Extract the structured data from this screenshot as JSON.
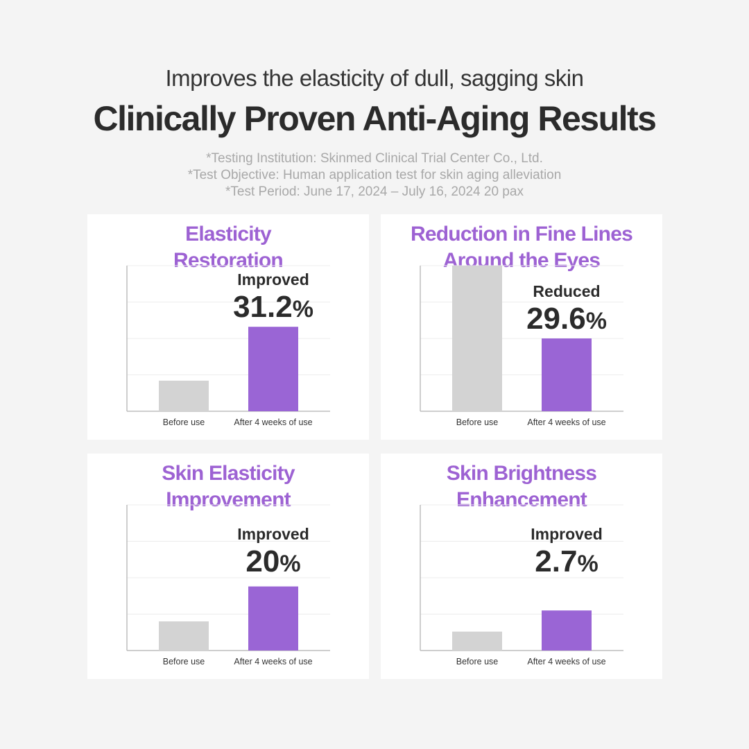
{
  "header": {
    "subtitle": "Improves the elasticity of dull, sagging skin",
    "title": "Clinically Proven Anti-Aging Results",
    "notes": [
      "*Testing Institution: Skinmed Clinical Trial Center Co., Ltd.",
      "*Test Objective: Human application test for skin aging alleviation",
      "*Test Period: June 17, 2024 – July 16, 2024 20 pax"
    ]
  },
  "colors": {
    "background": "#f4f4f4",
    "panel": "#ffffff",
    "accent": "#9d62d3",
    "bar_before": "#d3d3d3",
    "bar_after": "#9a65d5",
    "label_dark": "#2b2b2b",
    "grid": "#ececec",
    "axis": "#bdbdbd"
  },
  "chart_data": [
    {
      "type": "bar",
      "title_lines": [
        "Elasticity",
        "Restoration"
      ],
      "categories": [
        "Before use",
        "After 4 weeks of use"
      ],
      "values": [
        21,
        58
      ],
      "ylim": [
        0,
        100
      ],
      "annotation": {
        "word": "Improved",
        "value": "31.2",
        "unit": "%"
      },
      "grid": true
    },
    {
      "type": "bar",
      "title_lines": [
        "Reduction in Fine Lines",
        "Around the Eyes"
      ],
      "categories": [
        "Before use",
        "After 4 weeks of use"
      ],
      "values": [
        100,
        50
      ],
      "ylim": [
        0,
        100
      ],
      "annotation": {
        "word": "Reduced",
        "value": "29.6",
        "unit": "%"
      },
      "grid": true
    },
    {
      "type": "bar",
      "title_lines": [
        "Skin Elasticity",
        "Improvement"
      ],
      "categories": [
        "Before use",
        "After 4 weeks of use"
      ],
      "values": [
        20,
        44
      ],
      "ylim": [
        0,
        100
      ],
      "annotation": {
        "word": "Improved",
        "value": "20",
        "unit": "%"
      },
      "grid": true
    },
    {
      "type": "bar",
      "title_lines": [
        "Skin Brightness",
        "Enhancement"
      ],
      "categories": [
        "Before use",
        "After 4 weeks of use"
      ],
      "values": [
        13,
        27.5
      ],
      "ylim": [
        0,
        100
      ],
      "annotation": {
        "word": "Improved",
        "value": "2.7",
        "unit": "%"
      },
      "grid": true
    }
  ]
}
